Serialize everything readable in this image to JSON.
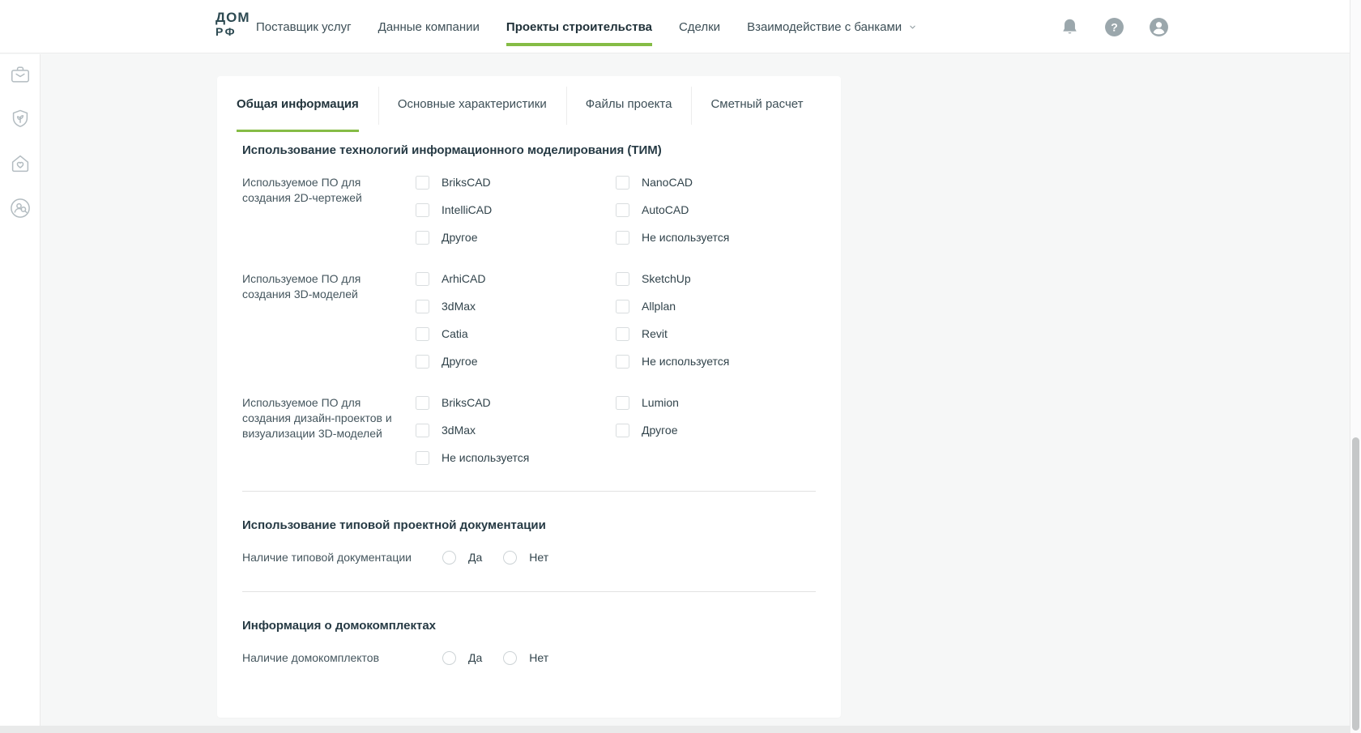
{
  "brand": {
    "logo_top": "ДОМ",
    "logo_bottom": "РФ"
  },
  "header": {
    "nav_items": [
      {
        "label": "Поставщик услуг",
        "active": false,
        "dropdown": false
      },
      {
        "label": "Данные компании",
        "active": false,
        "dropdown": false
      },
      {
        "label": "Проекты строительства",
        "active": true,
        "dropdown": false
      },
      {
        "label": "Сделки",
        "active": false,
        "dropdown": false
      },
      {
        "label": "Взаимодействие с банками",
        "active": false,
        "dropdown": true
      }
    ],
    "action_icons": [
      {
        "name": "notifications-bell-icon"
      },
      {
        "name": "help-icon",
        "glyph": "?"
      },
      {
        "name": "profile-icon"
      }
    ]
  },
  "sidebar": {
    "items": [
      {
        "icon": "briefcase-icon"
      },
      {
        "icon": "shield-plant-icon"
      },
      {
        "icon": "house-heart-icon"
      },
      {
        "icon": "person-search-icon"
      }
    ]
  },
  "tabs": [
    {
      "label": "Общая информация",
      "active": true
    },
    {
      "label": "Основные характеристики",
      "active": false
    },
    {
      "label": "Файлы проекта",
      "active": false
    },
    {
      "label": "Сметный расчет",
      "active": false
    }
  ],
  "form": {
    "sections": [
      {
        "heading": "Использование технологий информационного моделирования (ТИМ)",
        "fields": [
          {
            "type": "checkbox-group",
            "label": "Используемое ПО для создания 2D-чертежей",
            "columns": [
              [
                "BriksCAD",
                "IntelliCAD",
                "Другое"
              ],
              [
                "NanoCAD",
                "AutoCAD",
                "Не используется"
              ]
            ],
            "checked": []
          },
          {
            "type": "checkbox-group",
            "label": "Используемое ПО для создания 3D-моделей",
            "columns": [
              [
                "ArhiCAD",
                "3dMax",
                "Catia",
                "Другое"
              ],
              [
                "SketchUp",
                "Allplan",
                "Revit",
                "Не используется"
              ]
            ],
            "checked": []
          },
          {
            "type": "checkbox-group",
            "label": "Используемое ПО для создания дизайн-проектов и визуализации 3D-моделей",
            "columns": [
              [
                "BriksCAD",
                "3dMax",
                "Не используется"
              ],
              [
                "Lumion",
                "Другое"
              ]
            ],
            "checked": []
          }
        ]
      },
      {
        "heading": "Использование типовой проектной документации",
        "fields": [
          {
            "type": "radio-group",
            "label": "Наличие типовой документации",
            "options": [
              "Да",
              "Нет"
            ],
            "selected": null
          }
        ]
      },
      {
        "heading": "Информация о домокомплектах",
        "fields": [
          {
            "type": "radio-group",
            "label": "Наличие домокомплектов",
            "options": [
              "Да",
              "Нет"
            ],
            "selected": null
          }
        ]
      }
    ]
  },
  "colors": {
    "accent_green": "#85BC45",
    "brand_teal": "#2D4A52",
    "icon_gray": "#9BA7AC"
  }
}
